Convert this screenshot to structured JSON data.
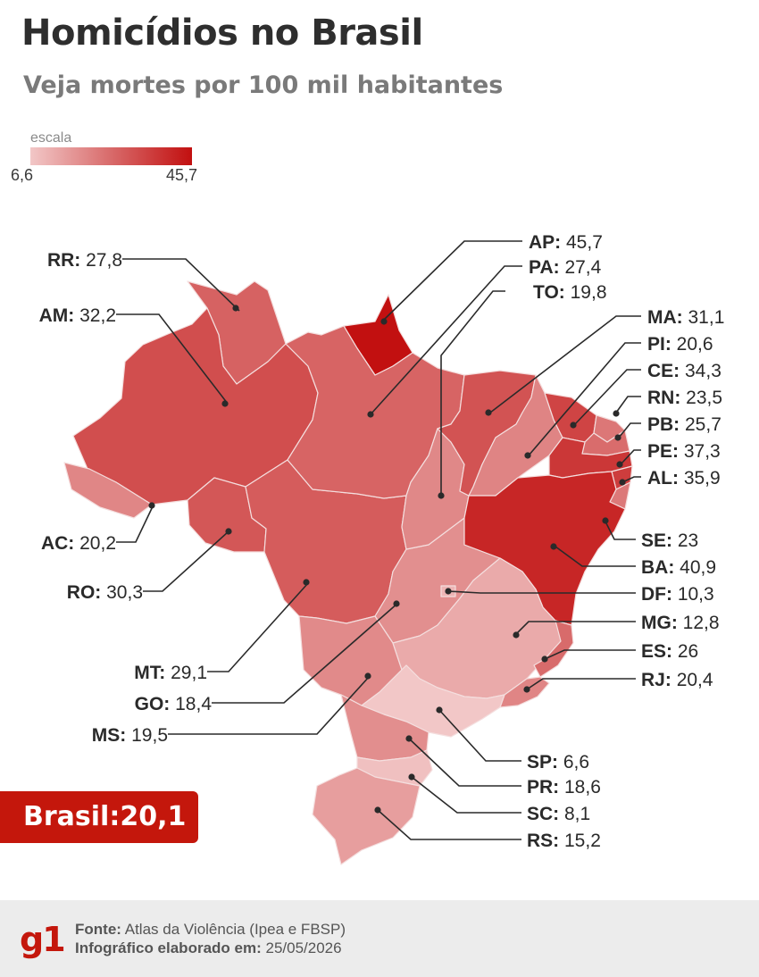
{
  "header": {
    "title": "Homicídios no Brasil",
    "subtitle": "Veja mortes por 100 mil habitantes"
  },
  "scale": {
    "label": "escala",
    "min_label": "6,6",
    "max_label": "45,7",
    "min": 6.6,
    "max": 45.7,
    "color_low": "#f2c7c7",
    "color_mid": "#d86a6a",
    "color_high": "#c21010"
  },
  "states": [
    {
      "uf": "RR",
      "label": "RR:",
      "value": "27,8",
      "rate": 27.8
    },
    {
      "uf": "AM",
      "label": "AM:",
      "value": "32,2",
      "rate": 32.2
    },
    {
      "uf": "AC",
      "label": "AC:",
      "value": "20,2",
      "rate": 20.2
    },
    {
      "uf": "RO",
      "label": "RO:",
      "value": "30,3",
      "rate": 30.3
    },
    {
      "uf": "MT",
      "label": "MT:",
      "value": "29,1",
      "rate": 29.1
    },
    {
      "uf": "GO",
      "label": "GO:",
      "value": "18,4",
      "rate": 18.4
    },
    {
      "uf": "MS",
      "label": "MS:",
      "value": "19,5",
      "rate": 19.5
    },
    {
      "uf": "AP",
      "label": "AP:",
      "value": "45,7",
      "rate": 45.7
    },
    {
      "uf": "PA",
      "label": "PA:",
      "value": "27,4",
      "rate": 27.4
    },
    {
      "uf": "TO",
      "label": "TO:",
      "value": "19,8",
      "rate": 19.8
    },
    {
      "uf": "MA",
      "label": "MA:",
      "value": "31,1",
      "rate": 31.1
    },
    {
      "uf": "PI",
      "label": "PI:",
      "value": "20,6",
      "rate": 20.6
    },
    {
      "uf": "CE",
      "label": "CE:",
      "value": "34,3",
      "rate": 34.3
    },
    {
      "uf": "RN",
      "label": "RN:",
      "value": "23,5",
      "rate": 23.5
    },
    {
      "uf": "PB",
      "label": "PB:",
      "value": "25,7",
      "rate": 25.7
    },
    {
      "uf": "PE",
      "label": "PE:",
      "value": "37,3",
      "rate": 37.3
    },
    {
      "uf": "AL",
      "label": "AL:",
      "value": "35,9",
      "rate": 35.9
    },
    {
      "uf": "SE",
      "label": "SE:",
      "value": "23",
      "rate": 23
    },
    {
      "uf": "BA",
      "label": "BA:",
      "value": "40,9",
      "rate": 40.9
    },
    {
      "uf": "DF",
      "label": "DF:",
      "value": "10,3",
      "rate": 10.3
    },
    {
      "uf": "MG",
      "label": "MG:",
      "value": "12,8",
      "rate": 12.8
    },
    {
      "uf": "ES",
      "label": "ES:",
      "value": "26",
      "rate": 26
    },
    {
      "uf": "RJ",
      "label": "RJ:",
      "value": "20,4",
      "rate": 20.4
    },
    {
      "uf": "SP",
      "label": "SP:",
      "value": "6,6",
      "rate": 6.6
    },
    {
      "uf": "PR",
      "label": "PR:",
      "value": "18,6",
      "rate": 18.6
    },
    {
      "uf": "SC",
      "label": "SC:",
      "value": "8,1",
      "rate": 8.1
    },
    {
      "uf": "RS",
      "label": "RS:",
      "value": "15,2",
      "rate": 15.2
    }
  ],
  "national": {
    "label": "Brasil:",
    "value": "20,1"
  },
  "footer": {
    "logo": "g1",
    "source_label": "Fonte:",
    "source": "Atlas da Violência (Ipea e FBSP)",
    "date_label": "Infográfico elaborado em:",
    "date": "25/05/2026"
  }
}
